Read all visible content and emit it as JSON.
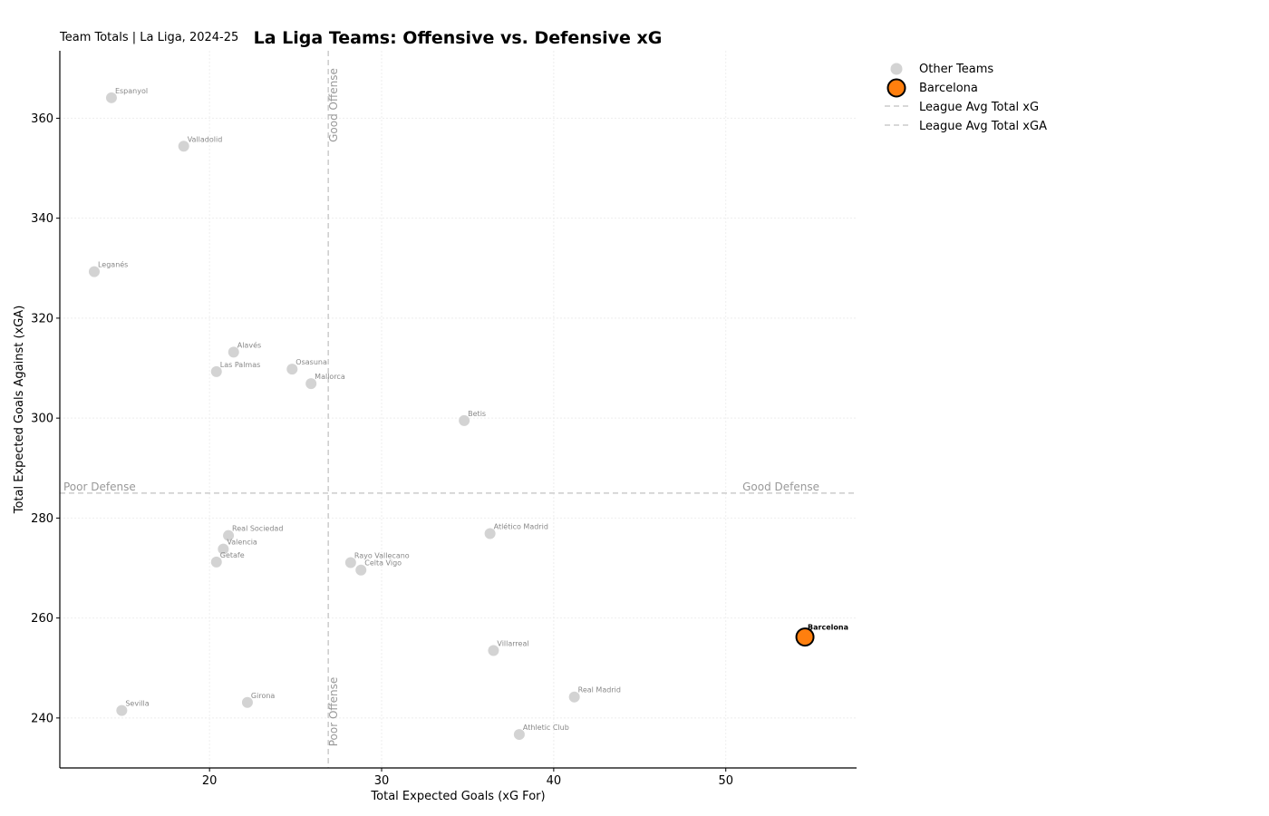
{
  "chart_data": {
    "type": "scatter",
    "title": "La Liga Teams: Offensive vs. Defensive xG",
    "subtitle": "Team Totals | La Liga, 2024-25",
    "xlabel": "Total Expected Goals (xG For)",
    "ylabel": "Total Expected Goals Against (xGA)",
    "xlim": [
      11.3,
      57.6
    ],
    "ylim": [
      230,
      373.5
    ],
    "xticks": [
      20,
      30,
      40,
      50
    ],
    "yticks": [
      240,
      260,
      280,
      300,
      320,
      340,
      360
    ],
    "grid": true,
    "legend_position": "outside-right",
    "reference_lines": {
      "avg_xg": 26.9,
      "avg_xga": 285.0
    },
    "zone_labels": {
      "good_offense": "Good Offense",
      "poor_offense": "Poor Offense",
      "good_defense": "Good Defense",
      "poor_defense": "Poor Defense"
    },
    "legend": {
      "other": "Other Teams",
      "highlight": "Barcelona",
      "avg_xg": "League Avg Total xG",
      "avg_xga": "League Avg Total xGA"
    },
    "colors": {
      "other": "#d3d3d3",
      "highlight": "#ff7f0e",
      "reference": "#cccccc"
    },
    "highlight": "Barcelona",
    "series": [
      {
        "name": "Other Teams",
        "points": [
          {
            "team": "Espanyol",
            "x": 14.3,
            "y": 364.1
          },
          {
            "team": "Valladolid",
            "x": 18.5,
            "y": 354.4
          },
          {
            "team": "Leganés",
            "x": 13.3,
            "y": 329.3
          },
          {
            "team": "Alavés",
            "x": 21.4,
            "y": 313.2
          },
          {
            "team": "Las Palmas",
            "x": 20.4,
            "y": 309.3
          },
          {
            "team": "Osasuna",
            "x": 24.8,
            "y": 309.8
          },
          {
            "team": "Mallorca",
            "x": 25.9,
            "y": 306.9
          },
          {
            "team": "Betis",
            "x": 34.8,
            "y": 299.5
          },
          {
            "team": "Atlético Madrid",
            "x": 36.3,
            "y": 276.9
          },
          {
            "team": "Real Sociedad",
            "x": 21.1,
            "y": 276.5
          },
          {
            "team": "Valencia",
            "x": 20.8,
            "y": 273.8
          },
          {
            "team": "Getafe",
            "x": 20.4,
            "y": 271.2
          },
          {
            "team": "Rayo Vallecano",
            "x": 28.2,
            "y": 271.1
          },
          {
            "team": "Celta Vigo",
            "x": 28.8,
            "y": 269.6
          },
          {
            "team": "Villarreal",
            "x": 36.5,
            "y": 253.5
          },
          {
            "team": "Real Madrid",
            "x": 41.2,
            "y": 244.2
          },
          {
            "team": "Girona",
            "x": 22.2,
            "y": 243.1
          },
          {
            "team": "Sevilla",
            "x": 14.9,
            "y": 241.5
          },
          {
            "team": "Athletic Club",
            "x": 38.0,
            "y": 236.7
          }
        ]
      },
      {
        "name": "Barcelona",
        "points": [
          {
            "team": "Barcelona",
            "x": 54.6,
            "y": 256.2
          }
        ]
      }
    ]
  }
}
